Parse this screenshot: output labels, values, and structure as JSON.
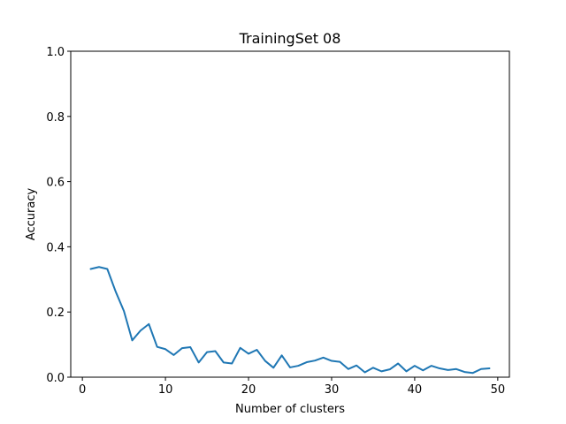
{
  "chart_data": {
    "type": "line",
    "title": "TrainingSet 08",
    "xlabel": "Number of clusters",
    "ylabel": "Accuracy",
    "xlim": [
      -1.4,
      51.4
    ],
    "ylim": [
      0.0,
      1.0
    ],
    "xticks": [
      0,
      10,
      20,
      30,
      40,
      50
    ],
    "yticks": [
      0.0,
      0.2,
      0.4,
      0.6,
      0.8,
      1.0
    ],
    "ytick_labels": [
      "0.0",
      "0.2",
      "0.4",
      "0.6",
      "0.8",
      "1.0"
    ],
    "grid": false,
    "colors": {
      "series": "#1f77b4",
      "axes": "#000000",
      "background": "#ffffff"
    },
    "series": [
      {
        "x": [
          1,
          2,
          3,
          4,
          5,
          6,
          7,
          8,
          9,
          10,
          11,
          12,
          13,
          14,
          15,
          16,
          17,
          18,
          19,
          20,
          21,
          22,
          23,
          24,
          25,
          26,
          27,
          28,
          29,
          30,
          31,
          32,
          33,
          34,
          35,
          36,
          37,
          38,
          39,
          40,
          41,
          42,
          43,
          44,
          45,
          46,
          47,
          48,
          49
        ],
        "values": [
          0.332,
          0.338,
          0.332,
          0.263,
          0.203,
          0.113,
          0.143,
          0.163,
          0.093,
          0.086,
          0.068,
          0.089,
          0.092,
          0.045,
          0.077,
          0.08,
          0.045,
          0.042,
          0.09,
          0.072,
          0.084,
          0.05,
          0.029,
          0.067,
          0.03,
          0.035,
          0.046,
          0.051,
          0.06,
          0.05,
          0.047,
          0.025,
          0.036,
          0.015,
          0.029,
          0.018,
          0.024,
          0.042,
          0.018,
          0.035,
          0.021,
          0.035,
          0.027,
          0.022,
          0.025,
          0.016,
          0.013,
          0.025,
          0.027
        ]
      }
    ]
  }
}
